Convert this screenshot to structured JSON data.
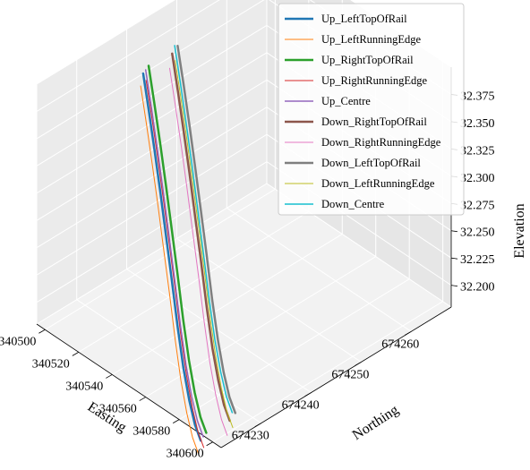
{
  "chart_data": {
    "type": "line",
    "projection": "3d",
    "title": "",
    "xlabel": "Easting",
    "ylabel": "Northing",
    "zlabel": "Elevation",
    "xlim": [
      340495,
      340605
    ],
    "ylim": [
      674222,
      674268
    ],
    "zlim": [
      32.18,
      32.4
    ],
    "x_ticks": [
      340500,
      340520,
      340540,
      340560,
      340580,
      340600
    ],
    "y_ticks": [
      674230,
      674240,
      674250,
      674260
    ],
    "z_ticks": [
      32.2,
      32.225,
      32.25,
      32.275,
      32.3,
      32.325,
      32.35,
      32.375
    ],
    "x_tick_labels": [
      "340500",
      "340520",
      "340540",
      "340560",
      "340580",
      "340600"
    ],
    "y_tick_labels": [
      "674230",
      "674240",
      "674250",
      "674260"
    ],
    "z_tick_labels": [
      "32.200",
      "32.225",
      "32.250",
      "32.275",
      "32.300",
      "32.325",
      "32.350",
      "32.375"
    ],
    "grid": true,
    "legend_position": "top-right",
    "x": [
      340500,
      340510,
      340520,
      340530,
      340540,
      340550,
      340560,
      340570,
      340580,
      340590,
      340600
    ],
    "series": [
      {
        "name": "Up_LeftTopOfRail",
        "color": "#1f77b4",
        "width": 2.5,
        "y": [
          674241.6,
          674239.4,
          674237.2,
          674235.0,
          674232.8,
          674230.6,
          674228.4,
          674226.2,
          674224.0,
          674221.8,
          674219.6
        ],
        "z": [
          32.36,
          32.342,
          32.322,
          32.3,
          32.276,
          32.252,
          32.226,
          32.205,
          32.192,
          32.186,
          32.188
        ]
      },
      {
        "name": "Up_LeftRunningEdge",
        "color": "#ff7f0e",
        "width": 1,
        "y": [
          674241.1,
          674238.9,
          674236.7,
          674234.5,
          674232.3,
          674230.1,
          674227.9,
          674225.7,
          674223.5,
          674221.3,
          674219.1
        ],
        "z": [
          32.35,
          32.332,
          32.312,
          32.29,
          32.266,
          32.242,
          32.216,
          32.195,
          32.182,
          32.176,
          32.178
        ]
      },
      {
        "name": "Up_RightTopOfRail",
        "color": "#2ca02c",
        "width": 2.5,
        "y": [
          674242.7,
          674240.5,
          674238.3,
          674236.1,
          674233.9,
          674231.7,
          674229.5,
          674227.3,
          674225.1,
          674222.9,
          674220.7
        ],
        "z": [
          32.364,
          32.346,
          32.326,
          32.304,
          32.28,
          32.256,
          32.23,
          32.209,
          32.196,
          32.19,
          32.192
        ]
      },
      {
        "name": "Up_RightRunningEdge",
        "color": "#d62728",
        "width": 1,
        "y": [
          674242.2,
          674240.0,
          674237.8,
          674235.6,
          674233.4,
          674231.2,
          674229.0,
          674226.8,
          674224.6,
          674222.4,
          674220.2
        ],
        "z": [
          32.352,
          32.334,
          32.314,
          32.292,
          32.268,
          32.244,
          32.218,
          32.197,
          32.184,
          32.178,
          32.18
        ]
      },
      {
        "name": "Up_Centre",
        "color": "#9467bd",
        "width": 1.5,
        "y": [
          674242.1,
          674239.9,
          674237.7,
          674235.5,
          674233.3,
          674231.1,
          674228.9,
          674226.7,
          674224.5,
          674222.3,
          674220.1
        ],
        "z": [
          32.362,
          32.344,
          32.324,
          32.302,
          32.278,
          32.254,
          32.228,
          32.207,
          32.194,
          32.188,
          32.19
        ]
      },
      {
        "name": "Down_RightTopOfRail",
        "color": "#8c564b",
        "width": 2.5,
        "y": [
          674247.4,
          674245.2,
          674243.0,
          674240.8,
          674238.6,
          674236.4,
          674234.2,
          674232.0,
          674229.8,
          674227.6,
          674225.4
        ],
        "z": [
          32.362,
          32.344,
          32.324,
          32.302,
          32.278,
          32.254,
          32.228,
          32.207,
          32.194,
          32.188,
          32.19
        ]
      },
      {
        "name": "Down_RightRunningEdge",
        "color": "#e377c2",
        "width": 1,
        "y": [
          674246.9,
          674244.7,
          674242.5,
          674240.3,
          674238.1,
          674235.9,
          674233.7,
          674231.5,
          674229.3,
          674227.1,
          674224.9
        ],
        "z": [
          32.35,
          32.332,
          32.312,
          32.29,
          32.266,
          32.242,
          32.216,
          32.195,
          32.182,
          32.176,
          32.178
        ]
      },
      {
        "name": "Down_LeftTopOfRail",
        "color": "#7f7f7f",
        "width": 2.5,
        "y": [
          674248.5,
          674246.3,
          674244.1,
          674241.9,
          674239.7,
          674237.5,
          674235.3,
          674233.1,
          674230.9,
          674228.7,
          674226.5
        ],
        "z": [
          32.366,
          32.348,
          32.328,
          32.306,
          32.282,
          32.258,
          32.232,
          32.211,
          32.198,
          32.192,
          32.194
        ]
      },
      {
        "name": "Down_LeftRunningEdge",
        "color": "#bcbd22",
        "width": 1,
        "y": [
          674248.0,
          674245.8,
          674243.6,
          674241.4,
          674239.2,
          674237.0,
          674234.8,
          674232.6,
          674230.4,
          674228.2,
          674226.0
        ],
        "z": [
          32.354,
          32.336,
          32.316,
          32.294,
          32.27,
          32.246,
          32.22,
          32.199,
          32.186,
          32.18,
          32.182
        ]
      },
      {
        "name": "Down_Centre",
        "color": "#17becf",
        "width": 1.5,
        "y": [
          674247.9,
          674245.7,
          674243.5,
          674241.3,
          674239.1,
          674236.9,
          674234.7,
          674232.5,
          674230.3,
          674228.1,
          674225.9
        ],
        "z": [
          32.368,
          32.35,
          32.33,
          32.308,
          32.284,
          32.26,
          32.234,
          32.213,
          32.2,
          32.194,
          32.196
        ]
      }
    ]
  }
}
